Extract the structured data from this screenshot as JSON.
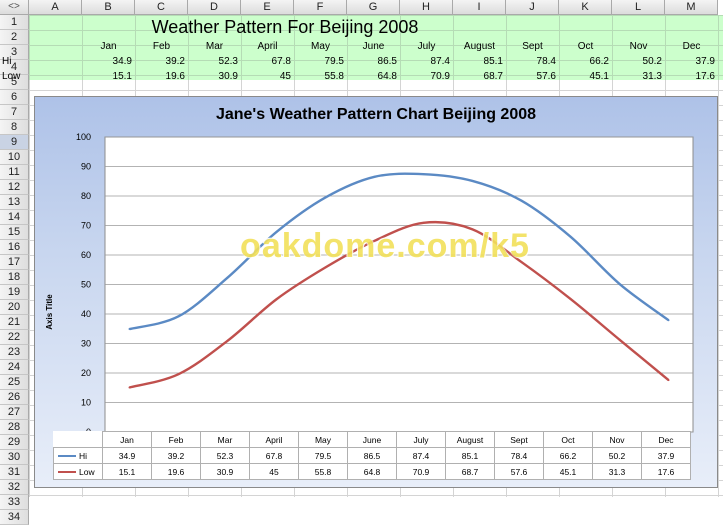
{
  "columns": [
    "A",
    "B",
    "C",
    "D",
    "E",
    "F",
    "G",
    "H",
    "I",
    "J",
    "K",
    "L",
    "M"
  ],
  "rows": [
    "1",
    "2",
    "3",
    "4",
    "5",
    "6",
    "7",
    "8",
    "9",
    "10",
    "11",
    "12",
    "13",
    "14",
    "15",
    "16",
    "17",
    "18",
    "19",
    "20",
    "21",
    "22",
    "23",
    "24",
    "25",
    "26",
    "27",
    "28",
    "29",
    "30",
    "31",
    "32",
    "33",
    "34"
  ],
  "corner_symbol": "<>",
  "sheet": {
    "title": "Weather Pattern For Beijing 2008",
    "months": [
      "Jan",
      "Feb",
      "Mar",
      "April",
      "May",
      "June",
      "July",
      "August",
      "Sept",
      "Oct",
      "Nov",
      "Dec"
    ],
    "hi_label": "Hi",
    "low_label": "Low",
    "hi_values": [
      "34.9",
      "39.2",
      "52.3",
      "67.8",
      "79.5",
      "86.5",
      "87.4",
      "85.1",
      "78.4",
      "66.2",
      "50.2",
      "37.9"
    ],
    "low_values": [
      "15.1",
      "19.6",
      "30.9",
      "45",
      "55.8",
      "64.8",
      "70.9",
      "68.7",
      "57.6",
      "45.1",
      "31.3",
      "17.6"
    ]
  },
  "watermark": "oakdome.com/k5",
  "chart_data": {
    "type": "line",
    "title": "Jane's Weather Pattern Chart Beijing 2008",
    "ylabel": "Axis Title",
    "xlabel": "",
    "categories": [
      "Jan",
      "Feb",
      "Mar",
      "April",
      "May",
      "June",
      "July",
      "August",
      "Sept",
      "Oct",
      "Nov",
      "Dec"
    ],
    "ylim": [
      0,
      100
    ],
    "yticks": [
      0,
      10,
      20,
      30,
      40,
      50,
      60,
      70,
      80,
      90,
      100
    ],
    "grid": true,
    "legend": "data-table",
    "series": [
      {
        "name": "Hi",
        "color": "#5b8ac4",
        "values": [
          34.9,
          39.2,
          52.3,
          67.8,
          79.5,
          86.5,
          87.4,
          85.1,
          78.4,
          66.2,
          50.2,
          37.9
        ]
      },
      {
        "name": "Low",
        "color": "#c0504d",
        "values": [
          15.1,
          19.6,
          30.9,
          45,
          55.8,
          64.8,
          70.9,
          68.7,
          57.6,
          45.1,
          31.3,
          17.6
        ]
      }
    ]
  }
}
